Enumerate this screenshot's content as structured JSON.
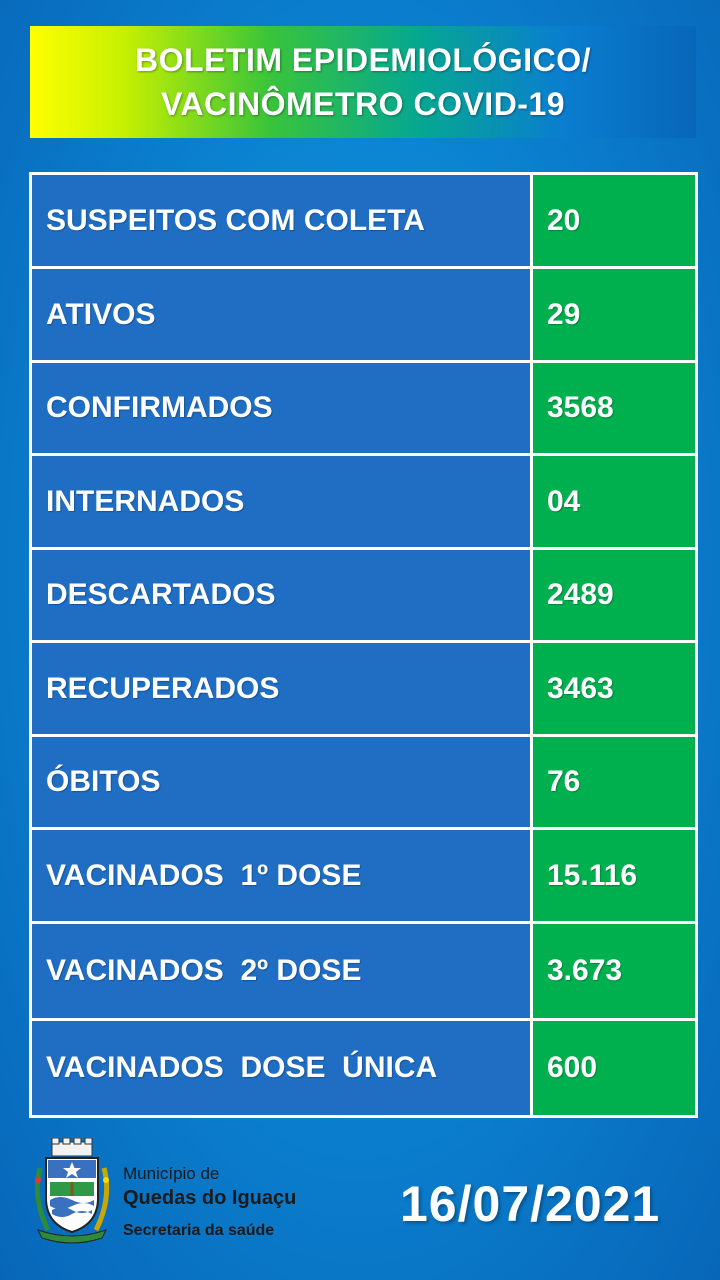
{
  "title": {
    "line1": "BOLETIM EPIDEMIOLÓGICO/",
    "line2": "VACINÔMETRO COVID-19"
  },
  "rows": [
    {
      "label": "SUSPEITOS COM COLETA",
      "value": "20"
    },
    {
      "label": "ATIVOS",
      "value": "29"
    },
    {
      "label": "CONFIRMADOS",
      "value": "3568"
    },
    {
      "label": "INTERNADOS",
      "value": "04"
    },
    {
      "label": "DESCARTADOS",
      "value": "2489"
    },
    {
      "label": "RECUPERADOS",
      "value": "3463"
    },
    {
      "label": "ÓBITOS",
      "value": "76"
    },
    {
      "label": "VACINADOS  1º DOSE",
      "value": "15.116"
    },
    {
      "label": "VACINADOS  2º DOSE",
      "value": "3.673"
    },
    {
      "label": "VACINADOS  DOSE  ÚNICA",
      "value": "600"
    }
  ],
  "footer": {
    "municipality_prefix": "Município de",
    "municipality_name": "Quedas do Iguaçu",
    "department": "Secretaria da saúde",
    "date": "16/07/2021"
  },
  "colors": {
    "label_cell": "#1f6ec4",
    "value_cell": "#00b04f",
    "background": "#0b84d2"
  },
  "icons": [
    "municipal-coat-of-arms-icon"
  ]
}
